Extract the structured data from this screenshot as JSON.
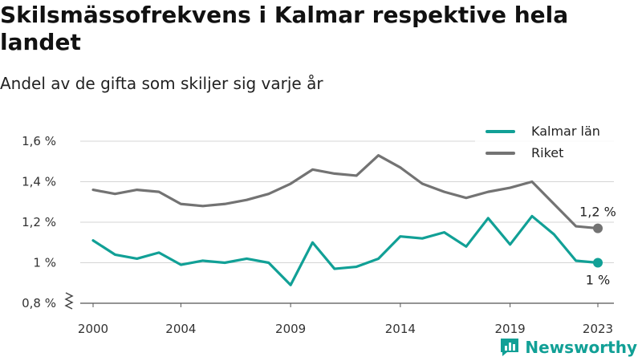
{
  "chart_data": {
    "type": "line",
    "title": "Skilsmässofrekvens i Kalmar respektive hela landet",
    "subtitle": "Andel av de gifta som skiljer sig varje år",
    "x": [
      2000,
      2001,
      2002,
      2003,
      2004,
      2005,
      2006,
      2007,
      2008,
      2009,
      2010,
      2011,
      2012,
      2013,
      2014,
      2015,
      2016,
      2017,
      2018,
      2019,
      2020,
      2021,
      2022,
      2023
    ],
    "x_ticks": [
      "2000",
      "2004",
      "2009",
      "2014",
      "2019",
      "2023"
    ],
    "y_ticks": [
      "0,8 %",
      "1 %",
      "1,2 %",
      "1,4 %",
      "1,6 %"
    ],
    "ylim": [
      0.8,
      1.6
    ],
    "grid": true,
    "legend_position": "top-right",
    "series": [
      {
        "name": "Kalmar län",
        "color": "#11a096",
        "values": [
          1.11,
          1.04,
          1.02,
          1.05,
          0.99,
          1.01,
          1.0,
          1.02,
          1.0,
          0.89,
          1.1,
          0.97,
          0.98,
          1.02,
          1.13,
          1.12,
          1.15,
          1.08,
          1.22,
          1.09,
          1.23,
          1.14,
          1.01,
          1.0
        ],
        "end_label": "1 %"
      },
      {
        "name": "Riket",
        "color": "#737373",
        "values": [
          1.36,
          1.34,
          1.36,
          1.35,
          1.29,
          1.28,
          1.29,
          1.31,
          1.34,
          1.39,
          1.46,
          1.44,
          1.43,
          1.53,
          1.47,
          1.39,
          1.35,
          1.32,
          1.35,
          1.37,
          1.4,
          1.29,
          1.18,
          1.17
        ],
        "end_label": "1,2 %"
      }
    ]
  },
  "brand": {
    "name": "Newsworthy",
    "icon": "newsworthy-logo-icon"
  }
}
